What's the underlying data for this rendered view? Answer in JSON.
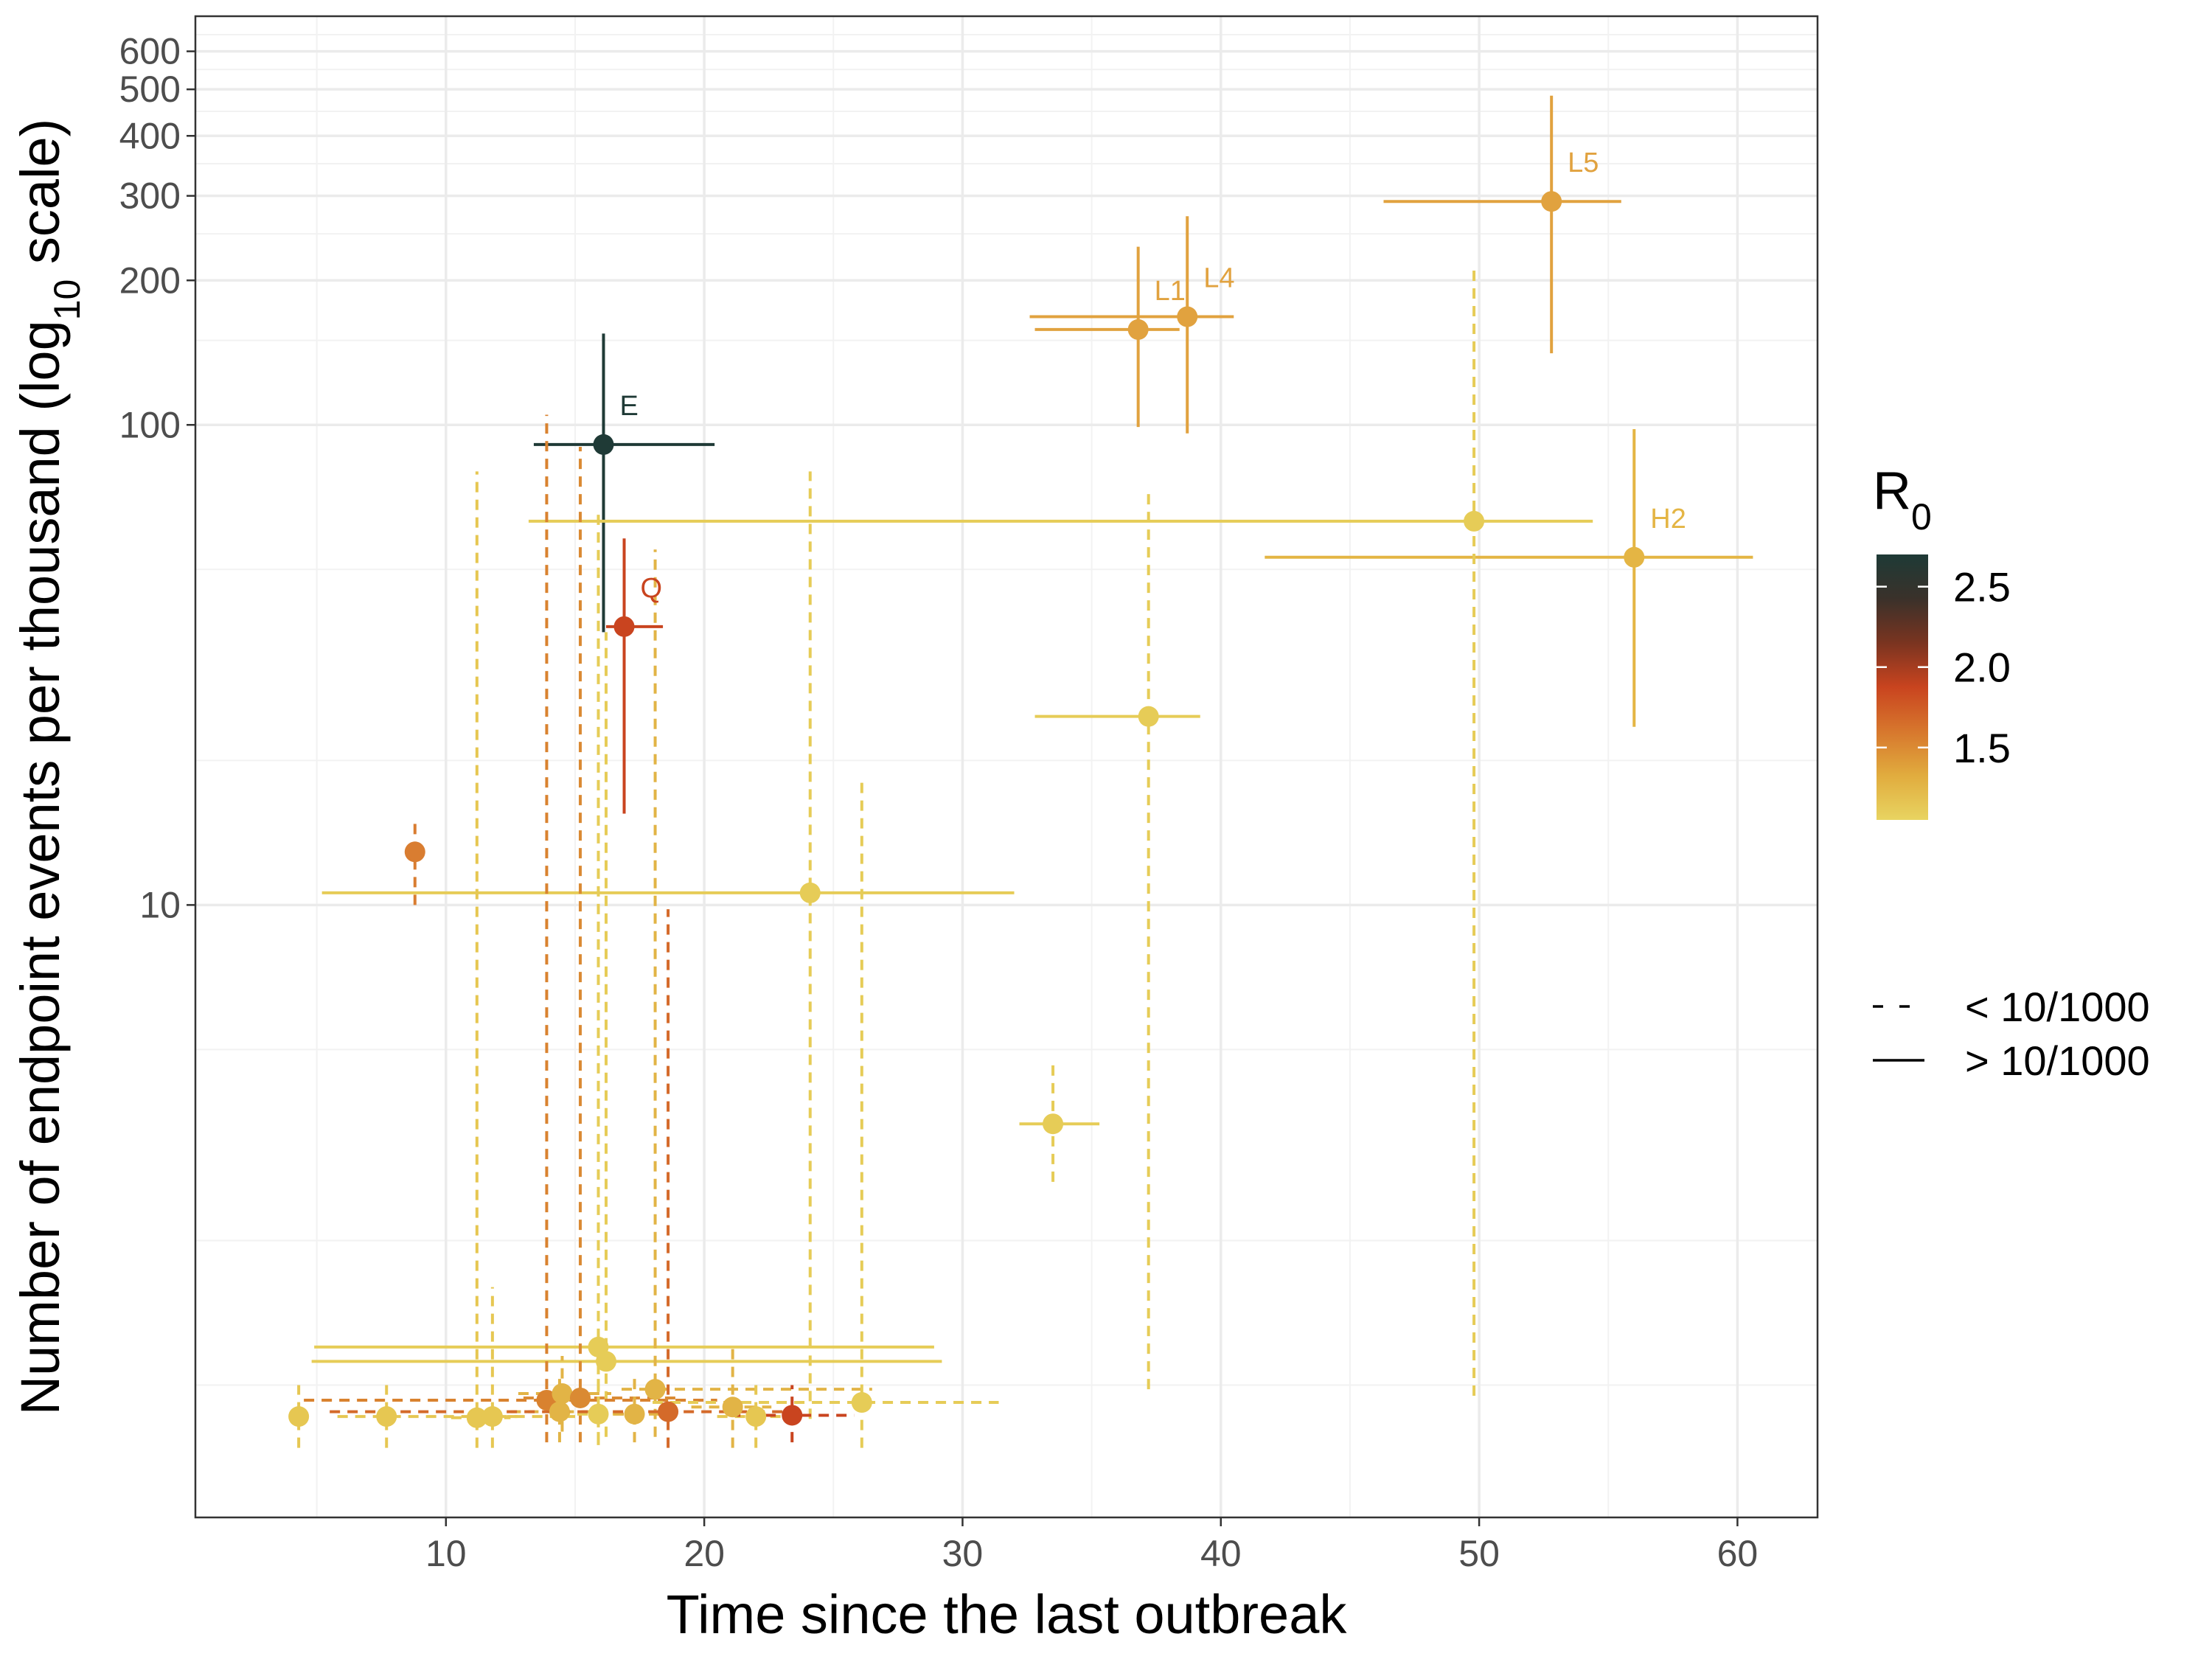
{
  "chart_data": {
    "type": "scatter",
    "xlabel": "Time since the last outbreak",
    "ylabel_main": "Number of endpoint events per thousand (log",
    "ylabel_sub": "10",
    "ylabel_end": " scale)",
    "x_scale": "linear",
    "y_scale": "log10",
    "xlim": [
      0.3,
      63.1
    ],
    "ylim": [
      0.53,
      710
    ],
    "grid": true,
    "x_ticks": [
      10,
      20,
      30,
      40,
      50,
      60
    ],
    "x_tick_labels": [
      "10",
      "20",
      "30",
      "40",
      "50",
      "60"
    ],
    "y_ticks": [
      10,
      100,
      200,
      300,
      400,
      500,
      600
    ],
    "y_tick_labels": [
      "10",
      "100",
      "200",
      "300",
      "400",
      "500",
      "600"
    ],
    "y_minor_grid": [
      1,
      2,
      5,
      20,
      50,
      150,
      250,
      350,
      450,
      550,
      650
    ],
    "x_minor_grid": [
      5,
      15,
      25,
      35,
      45,
      55
    ],
    "color_legend": {
      "title_main": "R",
      "title_sub": "0",
      "range": [
        1.05,
        2.7
      ],
      "ticks": [
        1.5,
        2.0,
        2.5
      ],
      "tick_labels": [
        "1.5",
        "2.0",
        "2.5"
      ],
      "gradient": [
        "#e8d461",
        "#e1ac3e",
        "#d7772d",
        "#c9441f",
        "#7a3420",
        "#3a312a",
        "#1e3a36"
      ]
    },
    "linetype_legend": [
      {
        "key": "dashed",
        "label": "< 10/1000"
      },
      {
        "key": "solid",
        "label": "> 10/1000"
      }
    ],
    "points": [
      {
        "label": "E",
        "x": 16.1,
        "y": 91,
        "xmin": 13.4,
        "xmax": 20.4,
        "ymin": 37,
        "ymax": 155,
        "r0": 2.6,
        "color": "#1f3a36",
        "line": "solid"
      },
      {
        "label": "Q",
        "x": 16.9,
        "y": 38,
        "xmin": 16.2,
        "xmax": 18.4,
        "ymin": 15.5,
        "ymax": 58,
        "r0": 2.05,
        "color": "#c9441f",
        "line": "solid"
      },
      {
        "label": "L1",
        "x": 36.8,
        "y": 158,
        "xmin": 32.8,
        "xmax": 38.4,
        "ymin": 99,
        "ymax": 235,
        "r0": 1.35,
        "color": "#e1a23f",
        "line": "solid"
      },
      {
        "label": "L4",
        "x": 38.7,
        "y": 168,
        "xmin": 32.6,
        "xmax": 40.5,
        "ymin": 96,
        "ymax": 272,
        "r0": 1.35,
        "color": "#e1a23f",
        "line": "solid"
      },
      {
        "label": "L5",
        "x": 52.8,
        "y": 292,
        "xmin": 46.3,
        "xmax": 55.5,
        "ymin": 141,
        "ymax": 485,
        "r0": 1.35,
        "color": "#e1a23f",
        "line": "solid"
      },
      {
        "label": "H2",
        "x": 56.0,
        "y": 53,
        "xmin": 41.7,
        "xmax": 60.6,
        "ymin": 23.5,
        "ymax": 98,
        "r0": 1.25,
        "color": "#e4b544",
        "line": "solid"
      },
      {
        "label": "",
        "x": 49.8,
        "y": 63,
        "xmin": 13.2,
        "xmax": 54.4,
        "ymin": 0.95,
        "ymax": 215,
        "r0": 1.1,
        "color": "#e6cc57",
        "line": "solid",
        "vline": "dashed"
      },
      {
        "label": "",
        "x": 37.2,
        "y": 24.7,
        "xmin": 32.8,
        "xmax": 39.2,
        "ymin": 0.98,
        "ymax": 72,
        "r0": 1.1,
        "color": "#e6cc57",
        "line": "solid",
        "vline": "dashed"
      },
      {
        "label": "",
        "x": 24.1,
        "y": 10.6,
        "xmin": 5.2,
        "xmax": 32.0,
        "ymin": 0.85,
        "ymax": 80,
        "r0": 1.1,
        "color": "#e6cc57",
        "line": "solid",
        "vline": "dashed"
      },
      {
        "label": "",
        "x": 33.5,
        "y": 3.5,
        "xmin": 32.2,
        "xmax": 35.3,
        "ymin": 2.65,
        "ymax": 4.65,
        "r0": 1.1,
        "color": "#e6cc57",
        "line": "solid",
        "vline": "dashed"
      },
      {
        "label": "",
        "x": 8.8,
        "y": 12.9,
        "xmin": 8.8,
        "xmax": 8.8,
        "ymin": 10.0,
        "ymax": 15.0,
        "r0": 1.55,
        "color": "#d97d31",
        "line": "dashed"
      },
      {
        "label": "",
        "x": 15.9,
        "y": 1.2,
        "xmin": 4.9,
        "xmax": 28.9,
        "ymin": 0.75,
        "ymax": 65,
        "r0": 1.1,
        "color": "#e6cc57",
        "line": "solid",
        "vline": "dashed"
      },
      {
        "label": "",
        "x": 16.2,
        "y": 1.12,
        "xmin": 4.8,
        "xmax": 29.2,
        "ymin": 0.78,
        "ymax": 37,
        "r0": 1.1,
        "color": "#e6cc57",
        "line": "solid",
        "vline": "dashed"
      },
      {
        "label": "",
        "x": 4.3,
        "y": 0.86,
        "xmin": 4.3,
        "xmax": 4.3,
        "ymin": 0.74,
        "ymax": 1.0,
        "r0": 1.15,
        "color": "#e6c752",
        "line": "dashed"
      },
      {
        "label": "",
        "x": 7.7,
        "y": 0.86,
        "xmin": 5.8,
        "xmax": 15.0,
        "ymin": 0.74,
        "ymax": 1.0,
        "r0": 1.15,
        "color": "#e6c752",
        "line": "dashed"
      },
      {
        "label": "",
        "x": 11.2,
        "y": 0.855,
        "xmin": 10.2,
        "xmax": 12.5,
        "ymin": 0.74,
        "ymax": 80,
        "r0": 1.15,
        "color": "#e6c752",
        "line": "dashed"
      },
      {
        "label": "",
        "x": 11.8,
        "y": 0.86,
        "xmin": 11.0,
        "xmax": 13.0,
        "ymin": 0.74,
        "ymax": 1.6,
        "r0": 1.15,
        "color": "#e6c752",
        "line": "dashed"
      },
      {
        "label": "",
        "x": 13.9,
        "y": 0.93,
        "xmin": 4.5,
        "xmax": 20.5,
        "ymin": 0.76,
        "ymax": 105,
        "r0": 1.5,
        "color": "#d9822f",
        "line": "dashed"
      },
      {
        "label": "",
        "x": 14.4,
        "y": 0.88,
        "xmin": 12.5,
        "xmax": 16.2,
        "ymin": 0.76,
        "ymax": 1.05,
        "r0": 1.2,
        "color": "#e2b446",
        "line": "dashed"
      },
      {
        "label": "",
        "x": 14.5,
        "y": 0.96,
        "xmin": 12.8,
        "xmax": 16.4,
        "ymin": 0.8,
        "ymax": 1.15,
        "r0": 1.2,
        "color": "#e2b446",
        "line": "dashed"
      },
      {
        "label": "",
        "x": 15.2,
        "y": 0.94,
        "xmin": 13.0,
        "xmax": 19.0,
        "ymin": 0.76,
        "ymax": 90,
        "r0": 1.45,
        "color": "#da8a33",
        "line": "dashed"
      },
      {
        "label": "",
        "x": 15.9,
        "y": 0.87,
        "xmin": 14.4,
        "xmax": 17.5,
        "ymin": 0.76,
        "ymax": 1.05,
        "r0": 1.15,
        "color": "#e6cc57",
        "line": "dashed"
      },
      {
        "label": "",
        "x": 17.3,
        "y": 0.87,
        "xmin": 15.8,
        "xmax": 19.0,
        "ymin": 0.76,
        "ymax": 1.05,
        "r0": 1.25,
        "color": "#e2b446",
        "line": "dashed"
      },
      {
        "label": "",
        "x": 18.1,
        "y": 0.98,
        "xmin": 16.8,
        "xmax": 26.5,
        "ymin": 0.78,
        "ymax": 55,
        "r0": 1.25,
        "color": "#e2b446",
        "line": "dashed"
      },
      {
        "label": "",
        "x": 18.6,
        "y": 0.88,
        "xmin": 5.5,
        "xmax": 24.0,
        "ymin": 0.74,
        "ymax": 9.8,
        "r0": 1.6,
        "color": "#d46a2a",
        "line": "dashed"
      },
      {
        "label": "",
        "x": 21.1,
        "y": 0.9,
        "xmin": 19.5,
        "xmax": 22.6,
        "ymin": 0.74,
        "ymax": 1.2,
        "r0": 1.25,
        "color": "#e2b446",
        "line": "dashed"
      },
      {
        "label": "",
        "x": 22.0,
        "y": 0.86,
        "xmin": 20.5,
        "xmax": 23.5,
        "ymin": 0.74,
        "ymax": 1.0,
        "r0": 1.15,
        "color": "#e6c752",
        "line": "dashed"
      },
      {
        "label": "",
        "x": 23.4,
        "y": 0.865,
        "xmin": 21.0,
        "xmax": 25.8,
        "ymin": 0.76,
        "ymax": 1.0,
        "r0": 1.9,
        "color": "#c9441f",
        "line": "dashed"
      },
      {
        "label": "",
        "x": 26.1,
        "y": 0.92,
        "xmin": 18.0,
        "xmax": 31.4,
        "ymin": 0.74,
        "ymax": 18,
        "r0": 1.1,
        "color": "#e6cc57",
        "line": "dashed"
      }
    ]
  }
}
